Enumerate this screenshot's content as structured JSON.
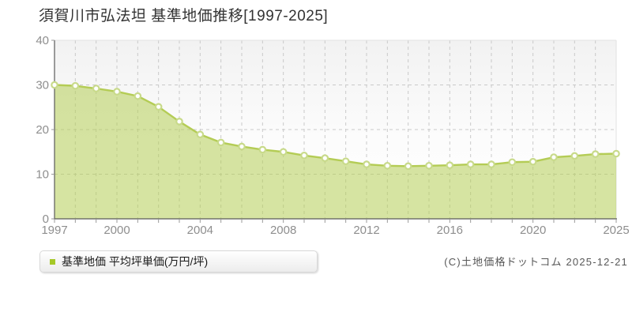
{
  "page": {
    "title": "須賀川市弘法坦 基準地価推移[1997-2025]",
    "copyright": "(C)土地価格ドットコム 2025-12-21"
  },
  "legend": {
    "label": "基準地価 平均坪単価(万円/坪)"
  },
  "chart_data": {
    "type": "area",
    "title": "須賀川市弘法坦 基準地価推移[1997-2025]",
    "series_name": "基準地価 平均坪単価(万円/坪)",
    "unit": "万円/坪",
    "x": [
      1997,
      1998,
      1999,
      2000,
      2001,
      2002,
      2003,
      2004,
      2005,
      2006,
      2007,
      2008,
      2009,
      2010,
      2011,
      2012,
      2013,
      2014,
      2015,
      2016,
      2017,
      2018,
      2019,
      2020,
      2022,
      2023,
      2024,
      2025
    ],
    "values": [
      30.0,
      29.8,
      29.2,
      28.5,
      27.5,
      25.1,
      21.8,
      18.9,
      17.1,
      16.2,
      15.5,
      15.0,
      14.2,
      13.6,
      12.9,
      12.2,
      11.9,
      11.8,
      11.9,
      12.0,
      12.2,
      12.2,
      12.7,
      12.8,
      13.8,
      14.1,
      14.5,
      14.6
    ],
    "ylim": [
      0,
      40
    ],
    "y_ticks": [
      0,
      10,
      20,
      30,
      40
    ],
    "x_tick_labels": [
      1997,
      2000,
      2004,
      2008,
      2012,
      2016,
      2020,
      2025
    ],
    "grid": true,
    "legend_position": "bottom-left",
    "note": "28 evenly spaced annual markers; no marker plotted for 2021",
    "colors": {
      "line": "#b4cc55",
      "fill": "rgba(181,205,85,0.55)",
      "marker_fill": "#ffffff",
      "marker_stroke": "#c8da8a",
      "legend_marker": "#a5c827",
      "grid": "#c9c9c9",
      "axis": "#5a5a5a",
      "plot_border": "#e2e2e2",
      "tick": "#999999",
      "tick_text": "#8e8e8e",
      "title_text": "#333333",
      "copyright_text": "#575757",
      "plot_bg_top": "#f2f2f2",
      "plot_bg_bottom": "#ffffff"
    }
  }
}
